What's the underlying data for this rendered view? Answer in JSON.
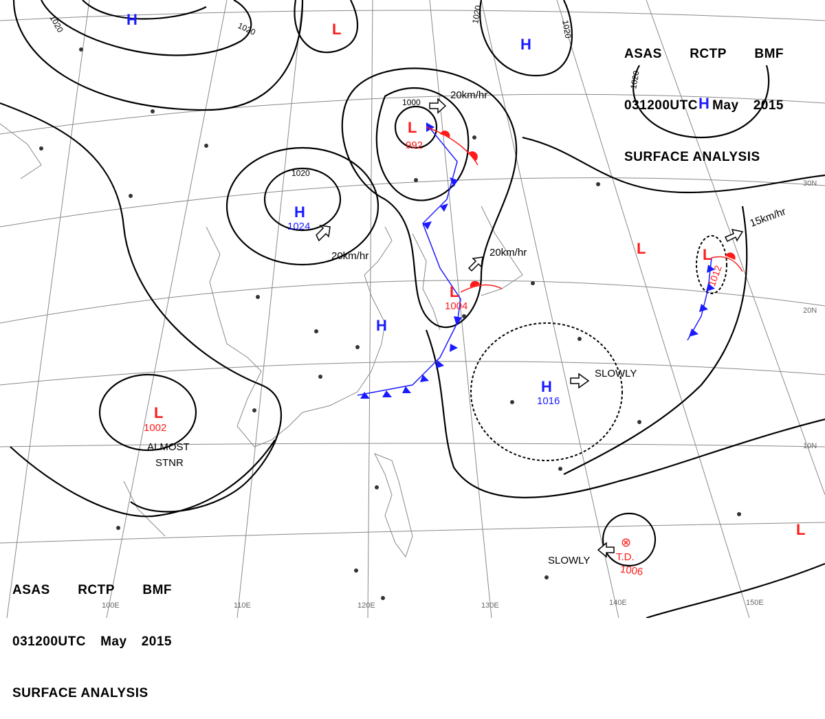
{
  "header": {
    "agency": "ASAS",
    "station": "RCTP",
    "code": "BMF",
    "time": "031200UTC",
    "month": "May",
    "year": "2015",
    "title": "SURFACE ANALYSIS"
  },
  "colors": {
    "high": "#1a1aff",
    "low": "#ff1a1a",
    "isobar": "#000000",
    "grid": "#777777",
    "coast": "#888888",
    "cold_front": "#1a1aff",
    "warm_front": "#ff1a1a"
  },
  "graticule": {
    "lat_labels": [
      "30N",
      "20N",
      "10N"
    ],
    "lon_labels": [
      "100E",
      "110E",
      "120E",
      "130E",
      "140E",
      "150E"
    ]
  },
  "isobar_labels": [
    "1020",
    "1020",
    "1020",
    "1020",
    "1020",
    "1000",
    "1020"
  ],
  "pressure_systems": [
    {
      "type": "H",
      "value": ""
    },
    {
      "type": "L",
      "value": ""
    },
    {
      "type": "H",
      "value": ""
    },
    {
      "type": "H",
      "value": ""
    },
    {
      "type": "L",
      "value": "992"
    },
    {
      "type": "H",
      "value": "1024"
    },
    {
      "type": "L",
      "value": "1004"
    },
    {
      "type": "H",
      "value": ""
    },
    {
      "type": "L",
      "value": "1002"
    },
    {
      "type": "H",
      "value": "1016"
    },
    {
      "type": "L",
      "value": ""
    },
    {
      "type": "L",
      "value": "1012"
    },
    {
      "type": "L",
      "value": ""
    }
  ],
  "tropical_depression": {
    "symbol": "⊗",
    "label": "T.D.",
    "value": "1006"
  },
  "motion_labels": [
    "20km/hr",
    "20km/hr",
    "20km/hr",
    "15km/hr",
    "SLOWLY",
    "SLOWLY"
  ],
  "annotations": [
    "ALMOST",
    "STNR"
  ]
}
